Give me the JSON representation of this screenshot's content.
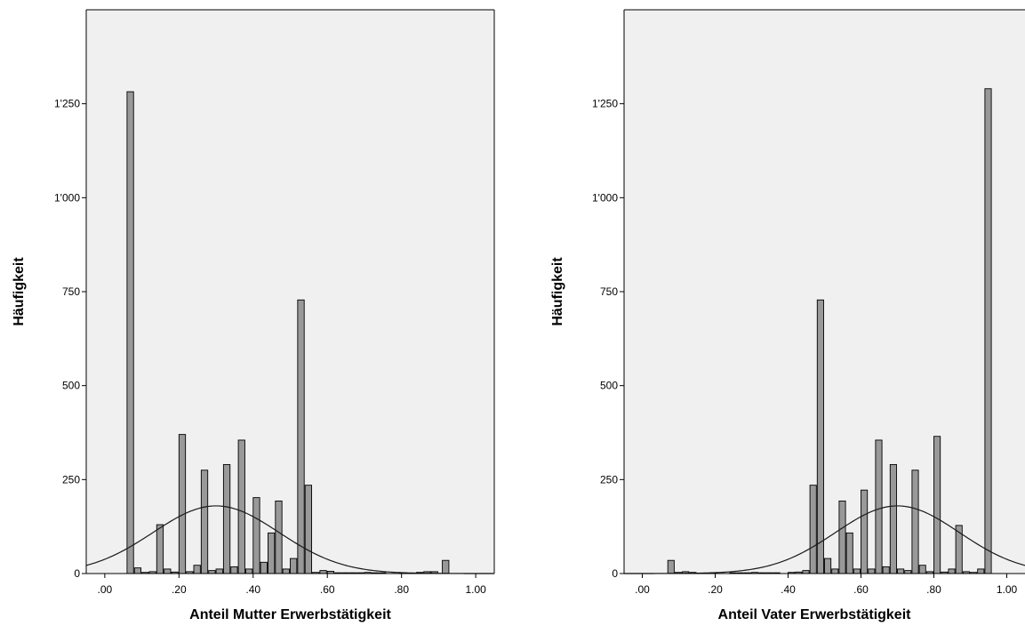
{
  "chart_data": [
    {
      "type": "bar",
      "xlabel": "Anteil Mutter Erwerbstätigkeit",
      "ylabel": "Häufigkeit",
      "xlim": [
        -0.05,
        1.05
      ],
      "ylim": [
        0,
        1500
      ],
      "x_ticks": [
        {
          "v": 0,
          "label": ".00"
        },
        {
          "v": 0.2,
          "label": ".20"
        },
        {
          "v": 0.4,
          "label": ".40"
        },
        {
          "v": 0.6,
          "label": ".60"
        },
        {
          "v": 0.8,
          "label": ".80"
        },
        {
          "v": 1.0,
          "label": "1.00"
        }
      ],
      "y_ticks": [
        {
          "v": 0,
          "label": "0"
        },
        {
          "v": 250,
          "label": "250"
        },
        {
          "v": 500,
          "label": "500"
        },
        {
          "v": 750,
          "label": "750"
        },
        {
          "v": 1000,
          "label": "1'000"
        },
        {
          "v": 1250,
          "label": "1'250"
        }
      ],
      "bin_width": 0.02,
      "bins": [
        {
          "x": 0.07,
          "y": 1282
        },
        {
          "x": 0.09,
          "y": 15
        },
        {
          "x": 0.11,
          "y": 3
        },
        {
          "x": 0.13,
          "y": 5
        },
        {
          "x": 0.15,
          "y": 130
        },
        {
          "x": 0.17,
          "y": 12
        },
        {
          "x": 0.19,
          "y": 4
        },
        {
          "x": 0.21,
          "y": 370
        },
        {
          "x": 0.23,
          "y": 5
        },
        {
          "x": 0.25,
          "y": 22
        },
        {
          "x": 0.27,
          "y": 275
        },
        {
          "x": 0.29,
          "y": 8
        },
        {
          "x": 0.31,
          "y": 12
        },
        {
          "x": 0.33,
          "y": 290
        },
        {
          "x": 0.35,
          "y": 18
        },
        {
          "x": 0.37,
          "y": 355
        },
        {
          "x": 0.39,
          "y": 12
        },
        {
          "x": 0.41,
          "y": 202
        },
        {
          "x": 0.43,
          "y": 30
        },
        {
          "x": 0.45,
          "y": 108
        },
        {
          "x": 0.47,
          "y": 193
        },
        {
          "x": 0.49,
          "y": 12
        },
        {
          "x": 0.51,
          "y": 40
        },
        {
          "x": 0.53,
          "y": 728
        },
        {
          "x": 0.55,
          "y": 235
        },
        {
          "x": 0.57,
          "y": 3
        },
        {
          "x": 0.59,
          "y": 8
        },
        {
          "x": 0.61,
          "y": 6
        },
        {
          "x": 0.63,
          "y": 2
        },
        {
          "x": 0.65,
          "y": 2
        },
        {
          "x": 0.67,
          "y": 2
        },
        {
          "x": 0.69,
          "y": 2
        },
        {
          "x": 0.71,
          "y": 3
        },
        {
          "x": 0.73,
          "y": 2
        },
        {
          "x": 0.75,
          "y": 2
        },
        {
          "x": 0.85,
          "y": 3
        },
        {
          "x": 0.87,
          "y": 5
        },
        {
          "x": 0.89,
          "y": 5
        },
        {
          "x": 0.92,
          "y": 35
        }
      ],
      "normal_curve": {
        "mean": 0.3,
        "sd": 0.17,
        "peak": 180
      },
      "grid": false
    },
    {
      "type": "bar",
      "xlabel": "Anteil Vater Erwerbstätigkeit",
      "ylabel": "Häufigkeit",
      "xlim": [
        -0.05,
        1.05
      ],
      "ylim": [
        0,
        1500
      ],
      "x_ticks": [
        {
          "v": 0,
          "label": ".00"
        },
        {
          "v": 0.2,
          "label": ".20"
        },
        {
          "v": 0.4,
          "label": ".40"
        },
        {
          "v": 0.6,
          "label": ".60"
        },
        {
          "v": 0.8,
          "label": ".80"
        },
        {
          "v": 1.0,
          "label": "1.00"
        }
      ],
      "y_ticks": [
        {
          "v": 0,
          "label": "0"
        },
        {
          "v": 250,
          "label": "250"
        },
        {
          "v": 500,
          "label": "500"
        },
        {
          "v": 750,
          "label": "750"
        },
        {
          "v": 1000,
          "label": "1'000"
        },
        {
          "v": 1250,
          "label": "1'250"
        }
      ],
      "bin_width": 0.02,
      "bins": [
        {
          "x": 0.08,
          "y": 35
        },
        {
          "x": 0.1,
          "y": 3
        },
        {
          "x": 0.12,
          "y": 5
        },
        {
          "x": 0.14,
          "y": 3
        },
        {
          "x": 0.25,
          "y": 2
        },
        {
          "x": 0.27,
          "y": 2
        },
        {
          "x": 0.29,
          "y": 2
        },
        {
          "x": 0.31,
          "y": 3
        },
        {
          "x": 0.33,
          "y": 2
        },
        {
          "x": 0.35,
          "y": 2
        },
        {
          "x": 0.37,
          "y": 2
        },
        {
          "x": 0.41,
          "y": 3
        },
        {
          "x": 0.43,
          "y": 4
        },
        {
          "x": 0.45,
          "y": 8
        },
        {
          "x": 0.47,
          "y": 235
        },
        {
          "x": 0.49,
          "y": 728
        },
        {
          "x": 0.51,
          "y": 40
        },
        {
          "x": 0.53,
          "y": 12
        },
        {
          "x": 0.55,
          "y": 193
        },
        {
          "x": 0.57,
          "y": 108
        },
        {
          "x": 0.59,
          "y": 12
        },
        {
          "x": 0.61,
          "y": 222
        },
        {
          "x": 0.63,
          "y": 12
        },
        {
          "x": 0.65,
          "y": 355
        },
        {
          "x": 0.67,
          "y": 18
        },
        {
          "x": 0.69,
          "y": 290
        },
        {
          "x": 0.71,
          "y": 12
        },
        {
          "x": 0.73,
          "y": 8
        },
        {
          "x": 0.75,
          "y": 275
        },
        {
          "x": 0.77,
          "y": 22
        },
        {
          "x": 0.79,
          "y": 5
        },
        {
          "x": 0.81,
          "y": 365
        },
        {
          "x": 0.83,
          "y": 4
        },
        {
          "x": 0.85,
          "y": 12
        },
        {
          "x": 0.87,
          "y": 128
        },
        {
          "x": 0.89,
          "y": 5
        },
        {
          "x": 0.91,
          "y": 3
        },
        {
          "x": 0.93,
          "y": 12
        },
        {
          "x": 0.95,
          "y": 1290
        }
      ],
      "normal_curve": {
        "mean": 0.7,
        "sd": 0.17,
        "peak": 180
      },
      "grid": false
    }
  ]
}
